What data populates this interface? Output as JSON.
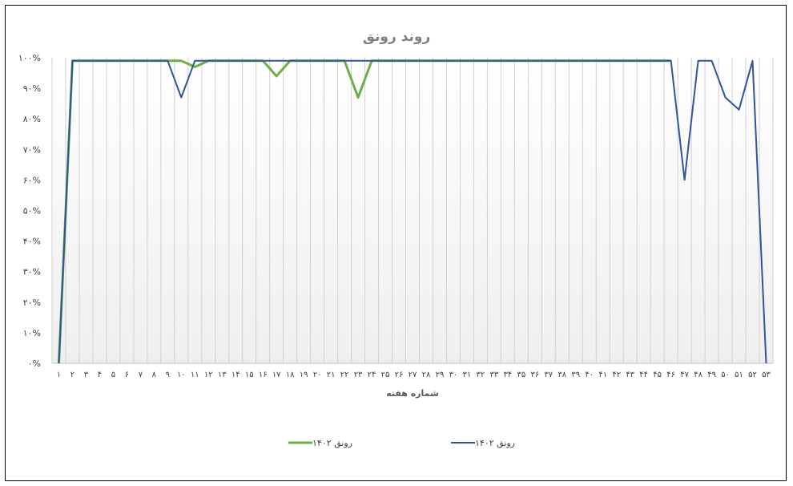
{
  "chart_data": {
    "type": "line",
    "title": "روند رونق",
    "xlabel": "شماره هفته",
    "ylabel": "",
    "ylim": [
      0,
      100
    ],
    "y_ticks": [
      "۰%",
      "۱۰%",
      "۲۰%",
      "۳۰%",
      "۴۰%",
      "۵۰%",
      "۶۰%",
      "۷۰%",
      "۸۰%",
      "۹۰%",
      "۱۰۰%"
    ],
    "categories": [
      "۱",
      "۲",
      "۳",
      "۴",
      "۵",
      "۶",
      "۷",
      "۸",
      "۹",
      "۱۰",
      "۱۱",
      "۱۲",
      "۱۳",
      "۱۴",
      "۱۵",
      "۱۶",
      "۱۷",
      "۱۸",
      "۱۹",
      "۲۰",
      "۲۱",
      "۲۲",
      "۲۳",
      "۲۴",
      "۲۵",
      "۲۶",
      "۲۷",
      "۲۸",
      "۲۹",
      "۳۰",
      "۳۱",
      "۳۲",
      "۳۳",
      "۳۴",
      "۳۵",
      "۳۶",
      "۳۷",
      "۳۸",
      "۳۹",
      "۴۰",
      "۴۱",
      "۴۲",
      "۴۳",
      "۴۴",
      "۴۵",
      "۴۶",
      "۴۷",
      "۴۸",
      "۴۹",
      "۵۰",
      "۵۱",
      "۵۲",
      "۵۳"
    ],
    "grid": "vertical",
    "legend_position": "bottom",
    "series": [
      {
        "name": "رونق ۱۴۰۲",
        "color": "#70ad47",
        "values": [
          0,
          99,
          99,
          99,
          99,
          99,
          99,
          99,
          99,
          99,
          97,
          99,
          99,
          99,
          99,
          99,
          94,
          99,
          99,
          99,
          99,
          99,
          87,
          99,
          99,
          99,
          99,
          99,
          99,
          99,
          99,
          99,
          99,
          99,
          99,
          99,
          99,
          99,
          99,
          99,
          99,
          99,
          99,
          99,
          99,
          99,
          null,
          null,
          null,
          null,
          null,
          null,
          null
        ]
      },
      {
        "name": "رونق ۱۴۰۲",
        "color": "#2f5597",
        "values": [
          0,
          99,
          99,
          99,
          99,
          99,
          99,
          99,
          99,
          87,
          99,
          99,
          99,
          99,
          99,
          99,
          99,
          99,
          99,
          99,
          99,
          99,
          99,
          99,
          99,
          99,
          99,
          99,
          99,
          99,
          99,
          99,
          99,
          99,
          99,
          99,
          99,
          99,
          99,
          99,
          99,
          99,
          99,
          99,
          99,
          99,
          60,
          99,
          99,
          87,
          83,
          99,
          0
        ]
      }
    ]
  }
}
